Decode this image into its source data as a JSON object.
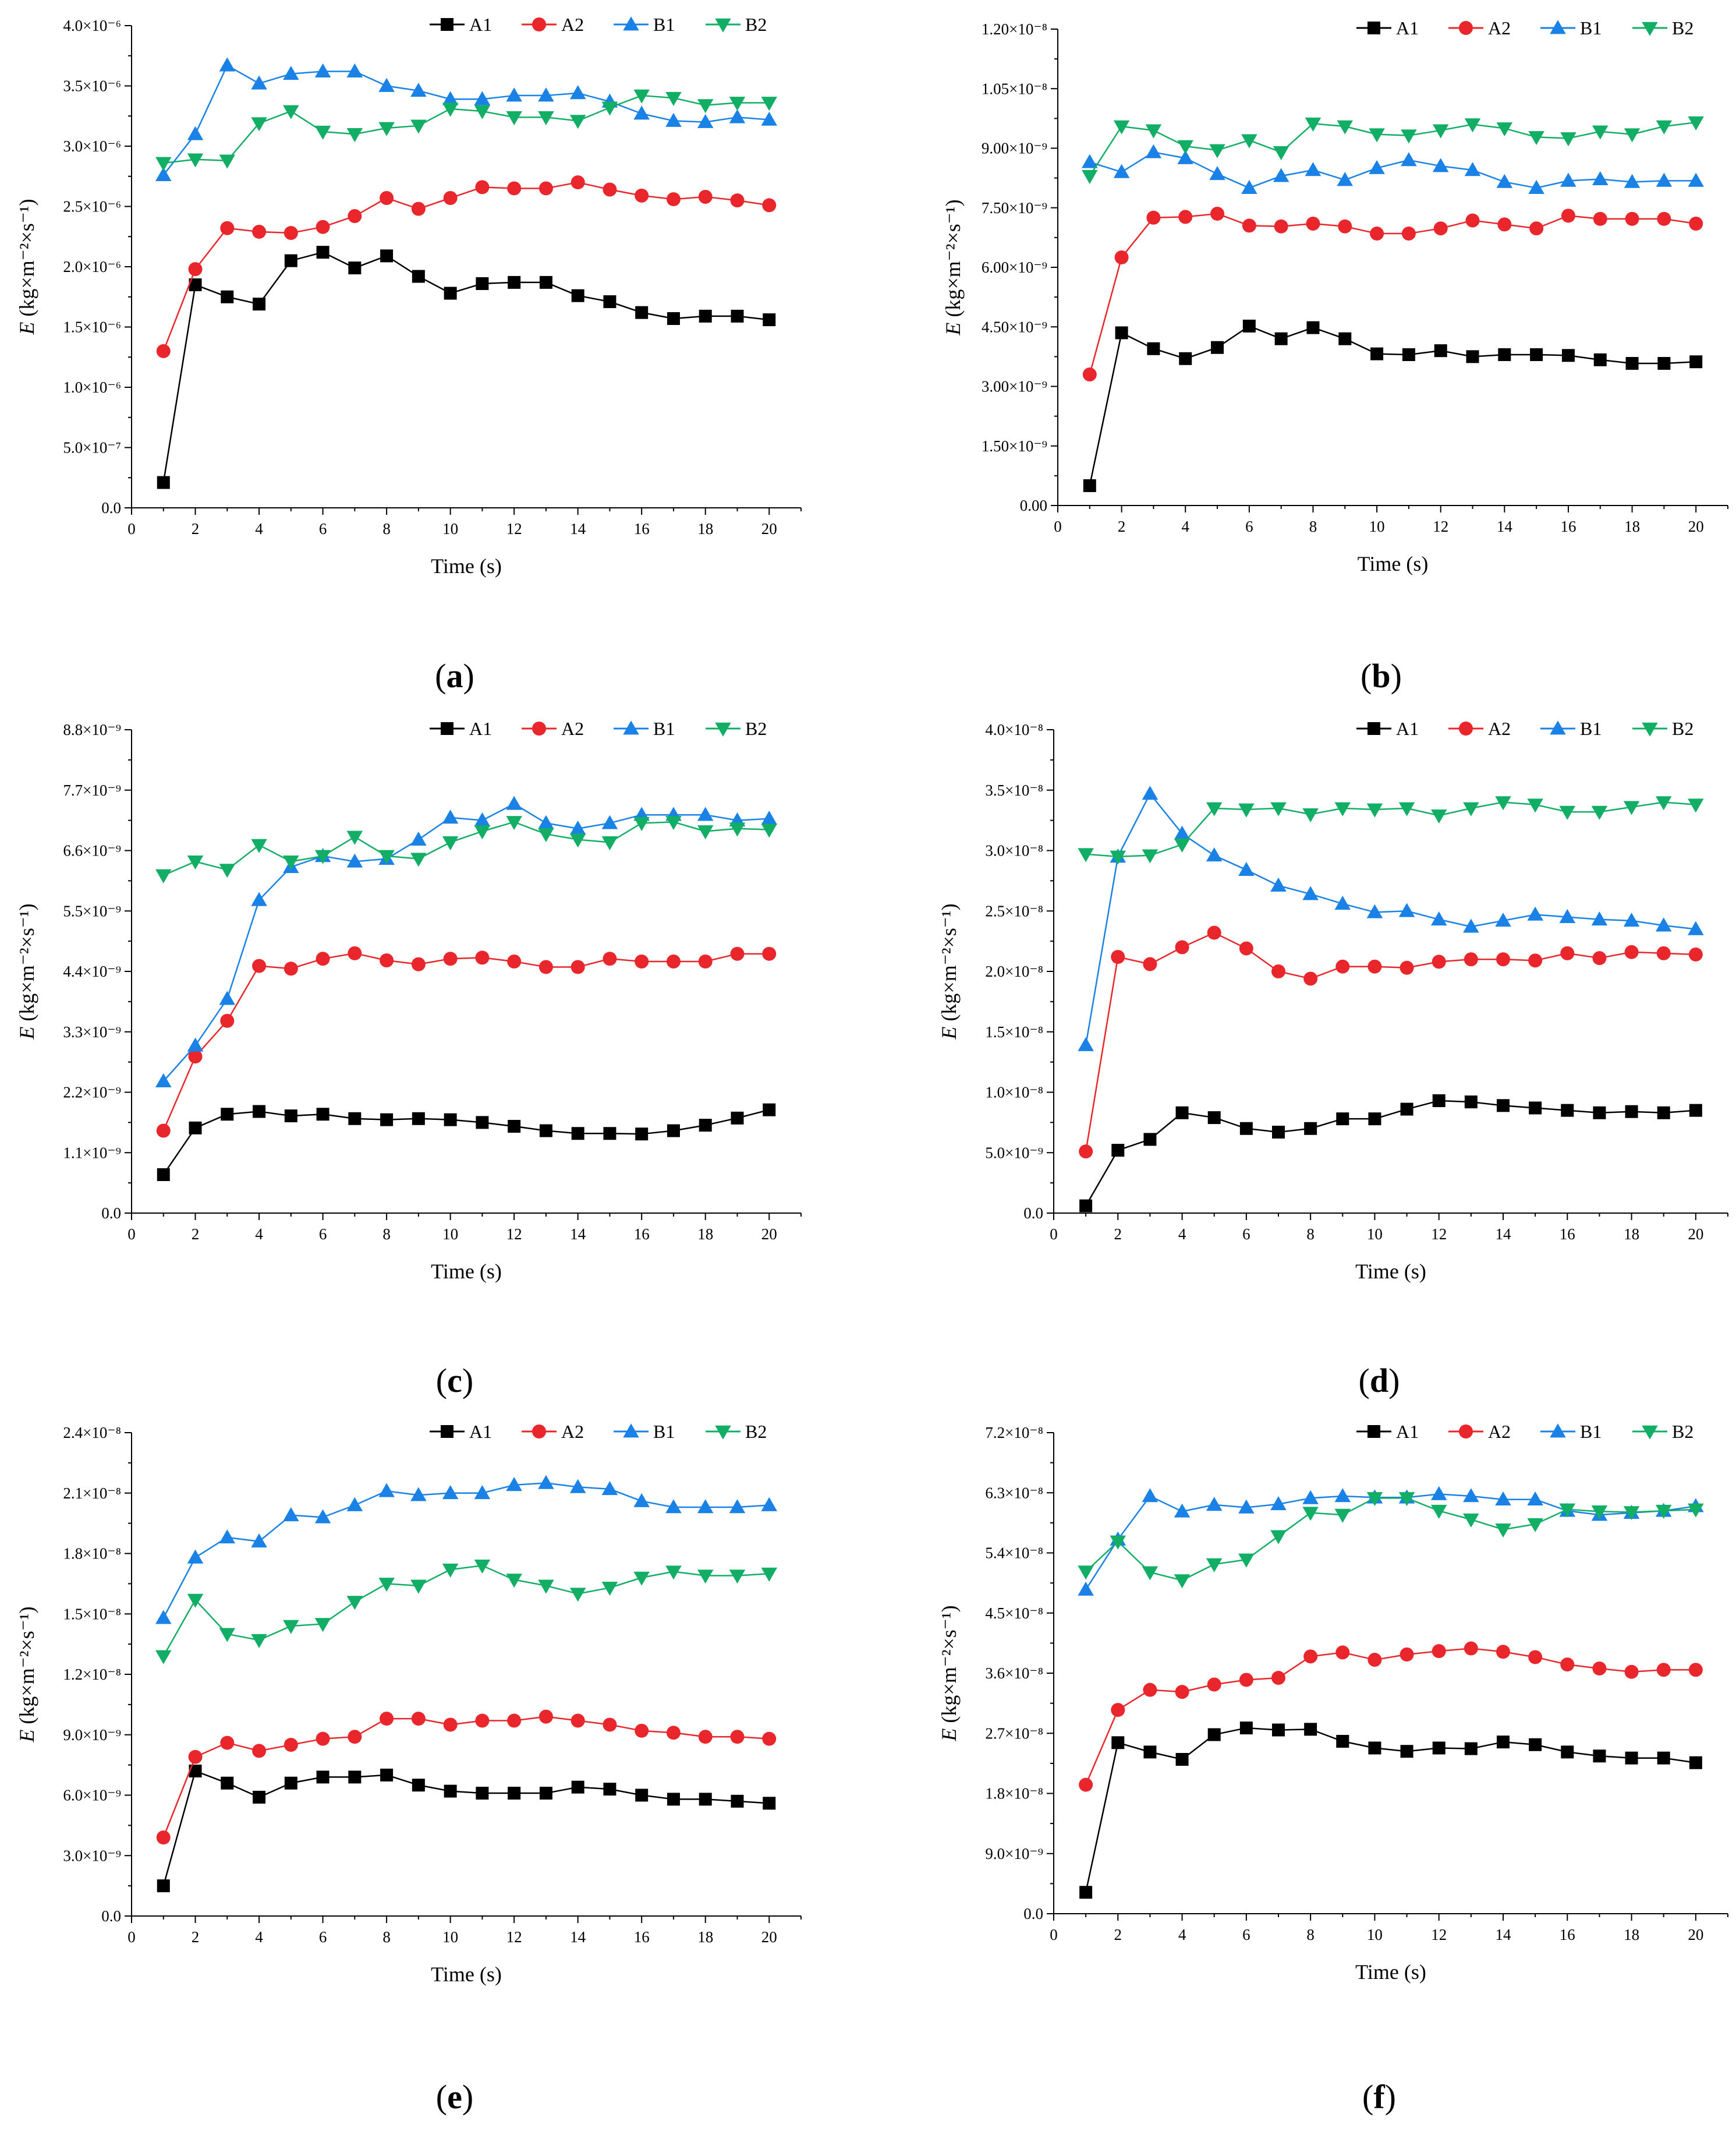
{
  "figure": {
    "colors": {
      "A1": "#000000",
      "A2": "#e8262b",
      "B1": "#1a82e6",
      "B2": "#12ae65"
    },
    "markers": {
      "A1": "square",
      "A2": "circle",
      "B1": "triangle-up",
      "B2": "triangle-down"
    }
  },
  "chart_data": [
    {
      "id": "a",
      "type": "line",
      "panel_label": {
        "open": "(",
        "letter": "a",
        "close": ")"
      },
      "xlabel": "Time (s)",
      "ylabel": {
        "var": "E",
        "rest": " (kg×m⁻²×s⁻¹)"
      },
      "xlim": [
        0,
        21
      ],
      "ylim": [
        0,
        4e-06
      ],
      "xticks": [
        "0",
        "2",
        "4",
        "6",
        "8",
        "10",
        "12",
        "14",
        "16",
        "18",
        "20"
      ],
      "yticks": [
        "0.0",
        "5.0×10⁻⁷",
        "1.0×10⁻⁶",
        "1.5×10⁻⁶",
        "2.0×10⁻⁶",
        "2.5×10⁻⁶",
        "3.0×10⁻⁶",
        "3.5×10⁻⁶",
        "4.0×10⁻⁶"
      ],
      "legend": "top-right",
      "x": [
        1,
        2,
        3,
        4,
        5,
        6,
        7,
        8,
        9,
        10,
        11,
        12,
        13,
        14,
        15,
        16,
        17,
        18,
        19,
        20
      ],
      "series": [
        {
          "name": "A1",
          "values": [
            2.1e-07,
            1.85e-06,
            1.75e-06,
            1.69e-06,
            2.05e-06,
            2.12e-06,
            1.99e-06,
            2.09e-06,
            1.92e-06,
            1.78e-06,
            1.86e-06,
            1.87e-06,
            1.87e-06,
            1.76e-06,
            1.71e-06,
            1.62e-06,
            1.57e-06,
            1.59e-06,
            1.59e-06,
            1.56e-06
          ]
        },
        {
          "name": "A2",
          "values": [
            1.3e-06,
            1.98e-06,
            2.32e-06,
            2.29e-06,
            2.28e-06,
            2.33e-06,
            2.42e-06,
            2.57e-06,
            2.48e-06,
            2.57e-06,
            2.66e-06,
            2.65e-06,
            2.65e-06,
            2.7e-06,
            2.64e-06,
            2.59e-06,
            2.56e-06,
            2.58e-06,
            2.55e-06,
            2.51e-06
          ]
        },
        {
          "name": "B1",
          "values": [
            2.76e-06,
            3.1e-06,
            3.67e-06,
            3.52e-06,
            3.6e-06,
            3.62e-06,
            3.62e-06,
            3.5e-06,
            3.46e-06,
            3.39e-06,
            3.39e-06,
            3.42e-06,
            3.42e-06,
            3.44e-06,
            3.37e-06,
            3.27e-06,
            3.21e-06,
            3.2e-06,
            3.24e-06,
            3.22e-06
          ]
        },
        {
          "name": "B2",
          "values": [
            2.86e-06,
            2.89e-06,
            2.88e-06,
            3.19e-06,
            3.29e-06,
            3.12e-06,
            3.1e-06,
            3.15e-06,
            3.17e-06,
            3.31e-06,
            3.29e-06,
            3.24e-06,
            3.24e-06,
            3.21e-06,
            3.32e-06,
            3.42e-06,
            3.4e-06,
            3.34e-06,
            3.36e-06,
            3.36e-06
          ]
        }
      ]
    },
    {
      "id": "b",
      "type": "line",
      "panel_label": {
        "open": "(",
        "letter": "b",
        "close": ")"
      },
      "xlabel": "Time (s)",
      "ylabel": {
        "var": "E",
        "rest": " (kg×m⁻²×s⁻¹)"
      },
      "xlim": [
        0,
        21
      ],
      "ylim": [
        0,
        1.2e-08
      ],
      "xticks": [
        "0",
        "2",
        "4",
        "6",
        "8",
        "10",
        "12",
        "14",
        "16",
        "18",
        "20"
      ],
      "yticks": [
        "0.00",
        "1.50×10⁻⁹",
        "3.00×10⁻⁹",
        "4.50×10⁻⁹",
        "6.00×10⁻⁹",
        "7.50×10⁻⁹",
        "9.00×10⁻⁹",
        "1.05×10⁻⁸",
        "1.20×10⁻⁸"
      ],
      "legend": "top-right",
      "x": [
        1,
        2,
        3,
        4,
        5,
        6,
        7,
        8,
        9,
        10,
        11,
        12,
        13,
        14,
        15,
        16,
        17,
        18,
        19,
        20
      ],
      "series": [
        {
          "name": "A1",
          "values": [
            5e-10,
            4.35e-09,
            3.95e-09,
            3.7e-09,
            3.98e-09,
            4.52e-09,
            4.2e-09,
            4.48e-09,
            4.2e-09,
            3.82e-09,
            3.8e-09,
            3.9e-09,
            3.75e-09,
            3.8e-09,
            3.8e-09,
            3.78e-09,
            3.67e-09,
            3.58e-09,
            3.58e-09,
            3.62e-09
          ]
        },
        {
          "name": "A2",
          "values": [
            3.3e-09,
            6.25e-09,
            7.25e-09,
            7.27e-09,
            7.35e-09,
            7.05e-09,
            7.03e-09,
            7.1e-09,
            7.03e-09,
            6.85e-09,
            6.85e-09,
            6.98e-09,
            7.18e-09,
            7.08e-09,
            6.98e-09,
            7.3e-09,
            7.22e-09,
            7.22e-09,
            7.22e-09,
            7.1e-09
          ]
        },
        {
          "name": "B1",
          "values": [
            8.65e-09,
            8.4e-09,
            8.9e-09,
            8.75e-09,
            8.35e-09,
            8e-09,
            8.3e-09,
            8.45e-09,
            8.2e-09,
            8.5e-09,
            8.7e-09,
            8.55e-09,
            8.45e-09,
            8.15e-09,
            8e-09,
            8.18e-09,
            8.22e-09,
            8.15e-09,
            8.18e-09,
            8.18e-09
          ]
        },
        {
          "name": "B2",
          "values": [
            8.3e-09,
            9.55e-09,
            9.45e-09,
            9.05e-09,
            8.95e-09,
            9.2e-09,
            8.9e-09,
            9.62e-09,
            9.55e-09,
            9.35e-09,
            9.32e-09,
            9.45e-09,
            9.6e-09,
            9.5e-09,
            9.28e-09,
            9.25e-09,
            9.42e-09,
            9.35e-09,
            9.55e-09,
            9.65e-09
          ]
        }
      ]
    },
    {
      "id": "c",
      "type": "line",
      "panel_label": {
        "open": "(",
        "letter": "c",
        "close": ")"
      },
      "xlabel": "Time (s)",
      "ylabel": {
        "var": "E",
        "rest": " (kg×m⁻²×s⁻¹)"
      },
      "xlim": [
        0,
        21
      ],
      "ylim": [
        0,
        8.8e-09
      ],
      "xticks": [
        "0",
        "2",
        "4",
        "6",
        "8",
        "10",
        "12",
        "14",
        "16",
        "18",
        "20"
      ],
      "yticks": [
        "0.0",
        "1.1×10⁻⁹",
        "2.2×10⁻⁹",
        "3.3×10⁻⁹",
        "4.4×10⁻⁹",
        "5.5×10⁻⁹",
        "6.6×10⁻⁹",
        "7.7×10⁻⁹",
        "8.8×10⁻⁹"
      ],
      "legend": "top-right",
      "x": [
        1,
        2,
        3,
        4,
        5,
        6,
        7,
        8,
        9,
        10,
        11,
        12,
        13,
        14,
        15,
        16,
        17,
        18,
        19,
        20
      ],
      "series": [
        {
          "name": "A1",
          "values": [
            7e-10,
            1.55e-09,
            1.8e-09,
            1.85e-09,
            1.77e-09,
            1.8e-09,
            1.72e-09,
            1.7e-09,
            1.72e-09,
            1.7e-09,
            1.65e-09,
            1.58e-09,
            1.5e-09,
            1.45e-09,
            1.45e-09,
            1.44e-09,
            1.5e-09,
            1.6e-09,
            1.73e-09,
            1.88e-09
          ]
        },
        {
          "name": "A2",
          "values": [
            1.5e-09,
            2.85e-09,
            3.5e-09,
            4.5e-09,
            4.45e-09,
            4.63e-09,
            4.73e-09,
            4.6e-09,
            4.53e-09,
            4.63e-09,
            4.65e-09,
            4.58e-09,
            4.48e-09,
            4.48e-09,
            4.63e-09,
            4.58e-09,
            4.58e-09,
            4.58e-09,
            4.72e-09,
            4.72e-09
          ]
        },
        {
          "name": "B1",
          "values": [
            2.4e-09,
            3.05e-09,
            3.9e-09,
            5.7e-09,
            6.3e-09,
            6.5e-09,
            6.4e-09,
            6.45e-09,
            6.8e-09,
            7.2e-09,
            7.15e-09,
            7.45e-09,
            7.1e-09,
            7e-09,
            7.1e-09,
            7.25e-09,
            7.25e-09,
            7.25e-09,
            7.15e-09,
            7.18e-09
          ]
        },
        {
          "name": "B2",
          "values": [
            6.15e-09,
            6.4e-09,
            6.25e-09,
            6.7e-09,
            6.4e-09,
            6.5e-09,
            6.85e-09,
            6.5e-09,
            6.45e-09,
            6.75e-09,
            6.95e-09,
            7.12e-09,
            6.9e-09,
            6.8e-09,
            6.75e-09,
            7.1e-09,
            7.12e-09,
            6.95e-09,
            7e-09,
            6.98e-09
          ]
        }
      ]
    },
    {
      "id": "d",
      "type": "line",
      "panel_label": {
        "open": "(",
        "letter": "d",
        "close": ")"
      },
      "xlabel": "Time (s)",
      "ylabel": {
        "var": "E",
        "rest": " (kg×m⁻²×s⁻¹)"
      },
      "xlim": [
        0,
        21
      ],
      "ylim": [
        0,
        4e-08
      ],
      "xticks": [
        "0",
        "2",
        "4",
        "6",
        "8",
        "10",
        "12",
        "14",
        "16",
        "18",
        "20"
      ],
      "yticks": [
        "0.0",
        "5.0×10⁻⁹",
        "1.0×10⁻⁸",
        "1.5×10⁻⁸",
        "2.0×10⁻⁸",
        "2.5×10⁻⁸",
        "3.0×10⁻⁸",
        "3.5×10⁻⁸",
        "4.0×10⁻⁸"
      ],
      "legend": "top-right",
      "x": [
        1,
        2,
        3,
        4,
        5,
        6,
        7,
        8,
        9,
        10,
        11,
        12,
        13,
        14,
        15,
        16,
        17,
        18,
        19,
        20
      ],
      "series": [
        {
          "name": "A1",
          "values": [
            6e-10,
            5.2e-09,
            6.1e-09,
            8.3e-09,
            7.9e-09,
            7e-09,
            6.7e-09,
            7e-09,
            7.8e-09,
            7.8e-09,
            8.6e-09,
            9.3e-09,
            9.2e-09,
            8.9e-09,
            8.7e-09,
            8.5e-09,
            8.3e-09,
            8.4e-09,
            8.3e-09,
            8.5e-09
          ]
        },
        {
          "name": "A2",
          "values": [
            5.1e-09,
            2.12e-08,
            2.06e-08,
            2.2e-08,
            2.32e-08,
            2.19e-08,
            2e-08,
            1.94e-08,
            2.04e-08,
            2.04e-08,
            2.03e-08,
            2.08e-08,
            2.1e-08,
            2.1e-08,
            2.09e-08,
            2.15e-08,
            2.11e-08,
            2.16e-08,
            2.15e-08,
            2.14e-08
          ]
        },
        {
          "name": "B1",
          "values": [
            1.39e-08,
            2.95e-08,
            3.47e-08,
            3.14e-08,
            2.96e-08,
            2.84e-08,
            2.71e-08,
            2.64e-08,
            2.56e-08,
            2.49e-08,
            2.5e-08,
            2.43e-08,
            2.37e-08,
            2.42e-08,
            2.47e-08,
            2.45e-08,
            2.43e-08,
            2.42e-08,
            2.38e-08,
            2.35e-08
          ]
        },
        {
          "name": "B2",
          "values": [
            2.97e-08,
            2.95e-08,
            2.96e-08,
            3.05e-08,
            3.35e-08,
            3.34e-08,
            3.35e-08,
            3.3e-08,
            3.35e-08,
            3.34e-08,
            3.35e-08,
            3.29e-08,
            3.35e-08,
            3.4e-08,
            3.38e-08,
            3.32e-08,
            3.32e-08,
            3.36e-08,
            3.4e-08,
            3.38e-08
          ]
        }
      ]
    },
    {
      "id": "e",
      "type": "line",
      "panel_label": {
        "open": "(",
        "letter": "e",
        "close": ")"
      },
      "xlabel": "Time (s)",
      "ylabel": {
        "var": "E",
        "rest": " (kg×m⁻²×s⁻¹)"
      },
      "xlim": [
        0,
        21
      ],
      "ylim": [
        0,
        2.4e-08
      ],
      "xticks": [
        "0",
        "2",
        "4",
        "6",
        "8",
        "10",
        "12",
        "14",
        "16",
        "18",
        "20"
      ],
      "yticks": [
        "0.0",
        "3.0×10⁻⁹",
        "6.0×10⁻⁹",
        "9.0×10⁻⁹",
        "1.2×10⁻⁸",
        "1.5×10⁻⁸",
        "1.8×10⁻⁸",
        "2.1×10⁻⁸",
        "2.4×10⁻⁸"
      ],
      "legend": "top-right",
      "x": [
        1,
        2,
        3,
        4,
        5,
        6,
        7,
        8,
        9,
        10,
        11,
        12,
        13,
        14,
        15,
        16,
        17,
        18,
        19,
        20
      ],
      "series": [
        {
          "name": "A1",
          "values": [
            1.5e-09,
            7.2e-09,
            6.6e-09,
            5.9e-09,
            6.6e-09,
            6.9e-09,
            6.9e-09,
            7e-09,
            6.5e-09,
            6.2e-09,
            6.1e-09,
            6.1e-09,
            6.1e-09,
            6.4e-09,
            6.3e-09,
            6e-09,
            5.8e-09,
            5.8e-09,
            5.7e-09,
            5.6e-09
          ]
        },
        {
          "name": "A2",
          "values": [
            3.9e-09,
            7.9e-09,
            8.6e-09,
            8.2e-09,
            8.5e-09,
            8.8e-09,
            8.9e-09,
            9.8e-09,
            9.8e-09,
            9.5e-09,
            9.7e-09,
            9.7e-09,
            9.9e-09,
            9.7e-09,
            9.5e-09,
            9.2e-09,
            9.1e-09,
            8.9e-09,
            8.9e-09,
            8.8e-09
          ]
        },
        {
          "name": "B1",
          "values": [
            1.48e-08,
            1.78e-08,
            1.88e-08,
            1.86e-08,
            1.99e-08,
            1.98e-08,
            2.04e-08,
            2.11e-08,
            2.09e-08,
            2.1e-08,
            2.1e-08,
            2.14e-08,
            2.15e-08,
            2.13e-08,
            2.12e-08,
            2.06e-08,
            2.03e-08,
            2.03e-08,
            2.03e-08,
            2.04e-08
          ]
        },
        {
          "name": "B2",
          "values": [
            1.29e-08,
            1.57e-08,
            1.4e-08,
            1.37e-08,
            1.44e-08,
            1.45e-08,
            1.56e-08,
            1.65e-08,
            1.64e-08,
            1.72e-08,
            1.74e-08,
            1.67e-08,
            1.64e-08,
            1.6e-08,
            1.63e-08,
            1.68e-08,
            1.71e-08,
            1.69e-08,
            1.69e-08,
            1.7e-08
          ]
        }
      ]
    },
    {
      "id": "f",
      "type": "line",
      "panel_label": {
        "open": "(",
        "letter": "f",
        "close": ")"
      },
      "xlabel": "Time (s)",
      "ylabel": {
        "var": "E",
        "rest": " (kg×m⁻²×s⁻¹)"
      },
      "xlim": [
        0,
        21
      ],
      "ylim": [
        0,
        7.2e-08
      ],
      "xticks": [
        "0",
        "2",
        "4",
        "6",
        "8",
        "10",
        "12",
        "14",
        "16",
        "18",
        "20"
      ],
      "yticks": [
        "0.0",
        "9.0×10⁻⁹",
        "1.8×10⁻⁸",
        "2.7×10⁻⁸",
        "3.6×10⁻⁸",
        "4.5×10⁻⁸",
        "5.4×10⁻⁸",
        "6.3×10⁻⁸",
        "7.2×10⁻⁸"
      ],
      "legend": "top-right",
      "x": [
        1,
        2,
        3,
        4,
        5,
        6,
        7,
        8,
        9,
        10,
        11,
        12,
        13,
        14,
        15,
        16,
        17,
        18,
        19,
        20
      ],
      "series": [
        {
          "name": "A1",
          "values": [
            3.2e-09,
            2.56e-08,
            2.42e-08,
            2.31e-08,
            2.68e-08,
            2.78e-08,
            2.75e-08,
            2.76e-08,
            2.58e-08,
            2.48e-08,
            2.43e-08,
            2.48e-08,
            2.47e-08,
            2.57e-08,
            2.53e-08,
            2.42e-08,
            2.36e-08,
            2.33e-08,
            2.33e-08,
            2.26e-08
          ]
        },
        {
          "name": "A2",
          "values": [
            1.93e-08,
            3.05e-08,
            3.35e-08,
            3.32e-08,
            3.43e-08,
            3.5e-08,
            3.53e-08,
            3.85e-08,
            3.91e-08,
            3.8e-08,
            3.88e-08,
            3.93e-08,
            3.97e-08,
            3.92e-08,
            3.84e-08,
            3.73e-08,
            3.67e-08,
            3.62e-08,
            3.65e-08,
            3.65e-08
          ]
        },
        {
          "name": "B1",
          "values": [
            4.85e-08,
            5.6e-08,
            6.25e-08,
            6.02e-08,
            6.12e-08,
            6.08e-08,
            6.13e-08,
            6.22e-08,
            6.25e-08,
            6.23e-08,
            6.23e-08,
            6.28e-08,
            6.25e-08,
            6.2e-08,
            6.2e-08,
            6.03e-08,
            5.97e-08,
            6e-08,
            6.03e-08,
            6.1e-08
          ]
        },
        {
          "name": "B2",
          "values": [
            5.12e-08,
            5.57e-08,
            5.11e-08,
            4.99e-08,
            5.23e-08,
            5.3e-08,
            5.65e-08,
            6e-08,
            5.97e-08,
            6.22e-08,
            6.22e-08,
            6.03e-08,
            5.9e-08,
            5.75e-08,
            5.83e-08,
            6.05e-08,
            6.02e-08,
            6.01e-08,
            6.03e-08,
            6.05e-08
          ]
        }
      ]
    }
  ]
}
